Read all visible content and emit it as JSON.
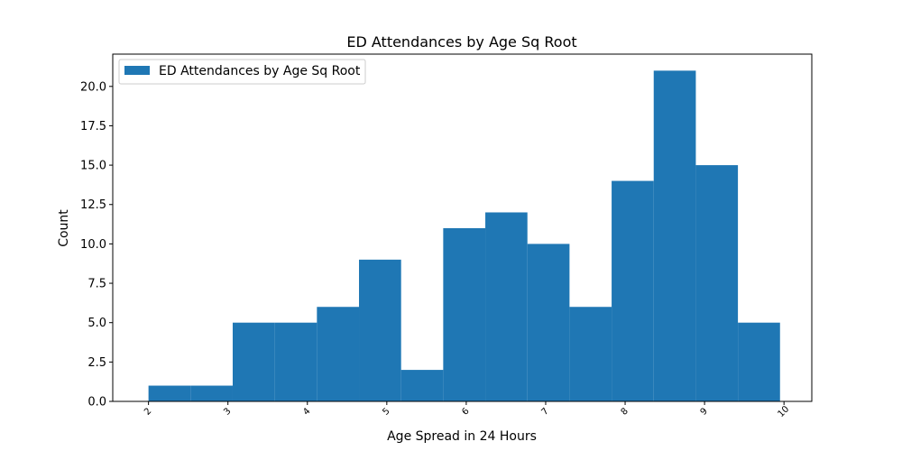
{
  "chart_data": {
    "type": "bar",
    "title": "ED Attendances by Age Sq Root",
    "xlabel": "Age Spread in 24 Hours",
    "ylabel": "Count",
    "xlim": [
      1.55,
      10.35
    ],
    "ylim": [
      0,
      22.05
    ],
    "x_ticks": [
      "2",
      "3",
      "4",
      "5",
      "6",
      "7",
      "8",
      "9",
      "10"
    ],
    "y_ticks": [
      "0.0",
      "2.5",
      "5.0",
      "7.5",
      "10.0",
      "12.5",
      "15.0",
      "17.5",
      "20.0"
    ],
    "bin_edges": [
      2.0,
      2.53,
      3.06,
      3.59,
      4.12,
      4.65,
      5.18,
      5.71,
      6.24,
      6.77,
      7.3,
      7.83,
      8.36,
      8.89,
      9.42,
      9.95
    ],
    "values": [
      1,
      1,
      5,
      5,
      6,
      9,
      2,
      11,
      12,
      10,
      6,
      14,
      21,
      15,
      5
    ],
    "series": [
      {
        "name": "ED Attendances by Age Sq Root",
        "color": "#1f77b4"
      }
    ],
    "legend": "top-left",
    "grid": false
  }
}
